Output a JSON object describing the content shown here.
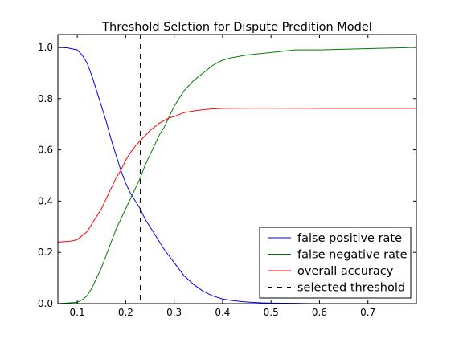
{
  "chart_data": {
    "type": "line",
    "title": "Threshold Selction for Dispute Predition Model",
    "xlabel": "",
    "ylabel": "",
    "xlim": [
      0.06,
      0.8
    ],
    "ylim": [
      0.0,
      1.05
    ],
    "xticks": [
      0.1,
      0.2,
      0.3,
      0.4,
      0.5,
      0.6,
      0.7
    ],
    "yticks": [
      0.0,
      0.2,
      0.4,
      0.6,
      0.8,
      1.0
    ],
    "xtick_labels": [
      "0.1",
      "0.2",
      "0.3",
      "0.4",
      "0.5",
      "0.6",
      "0.7"
    ],
    "ytick_labels": [
      "0.0",
      "0.2",
      "0.4",
      "0.6",
      "0.8",
      "1.0"
    ],
    "grid": false,
    "legend_position": "lower-right",
    "series": [
      {
        "name": "false positive rate",
        "color": "#0000ff",
        "x": [
          0.06,
          0.08,
          0.1,
          0.11,
          0.12,
          0.13,
          0.14,
          0.15,
          0.16,
          0.17,
          0.18,
          0.19,
          0.2,
          0.21,
          0.22,
          0.23,
          0.24,
          0.25,
          0.26,
          0.28,
          0.3,
          0.32,
          0.34,
          0.36,
          0.38,
          0.4,
          0.42,
          0.44,
          0.46,
          0.48,
          0.5,
          0.55,
          0.6,
          0.7,
          0.8
        ],
        "y": [
          1.0,
          0.998,
          0.99,
          0.97,
          0.94,
          0.89,
          0.83,
          0.77,
          0.71,
          0.64,
          0.58,
          0.52,
          0.47,
          0.43,
          0.4,
          0.37,
          0.33,
          0.3,
          0.27,
          0.21,
          0.16,
          0.11,
          0.075,
          0.048,
          0.03,
          0.018,
          0.012,
          0.008,
          0.005,
          0.003,
          0.002,
          0.001,
          0.0,
          0.0,
          0.0
        ]
      },
      {
        "name": "false negative rate",
        "color": "#008000",
        "x": [
          0.06,
          0.1,
          0.11,
          0.12,
          0.13,
          0.14,
          0.15,
          0.16,
          0.17,
          0.18,
          0.19,
          0.2,
          0.21,
          0.22,
          0.23,
          0.24,
          0.25,
          0.26,
          0.27,
          0.28,
          0.29,
          0.3,
          0.32,
          0.34,
          0.36,
          0.38,
          0.4,
          0.42,
          0.45,
          0.5,
          0.55,
          0.6,
          0.7,
          0.8
        ],
        "y": [
          0.0,
          0.005,
          0.015,
          0.03,
          0.06,
          0.1,
          0.14,
          0.19,
          0.24,
          0.29,
          0.33,
          0.37,
          0.41,
          0.45,
          0.49,
          0.54,
          0.58,
          0.62,
          0.66,
          0.69,
          0.73,
          0.77,
          0.83,
          0.87,
          0.9,
          0.93,
          0.95,
          0.96,
          0.97,
          0.98,
          0.99,
          0.99,
          0.995,
          1.0
        ]
      },
      {
        "name": "overall accuracy",
        "color": "#ff0000",
        "x": [
          0.06,
          0.08,
          0.09,
          0.1,
          0.11,
          0.12,
          0.13,
          0.14,
          0.15,
          0.16,
          0.17,
          0.18,
          0.19,
          0.2,
          0.21,
          0.22,
          0.23,
          0.24,
          0.25,
          0.26,
          0.27,
          0.28,
          0.29,
          0.3,
          0.32,
          0.34,
          0.36,
          0.38,
          0.4,
          0.45,
          0.5,
          0.6,
          0.7,
          0.8
        ],
        "y": [
          0.24,
          0.243,
          0.245,
          0.25,
          0.265,
          0.28,
          0.31,
          0.34,
          0.37,
          0.41,
          0.45,
          0.49,
          0.52,
          0.56,
          0.59,
          0.615,
          0.635,
          0.655,
          0.675,
          0.69,
          0.705,
          0.715,
          0.725,
          0.73,
          0.745,
          0.752,
          0.757,
          0.76,
          0.762,
          0.763,
          0.763,
          0.762,
          0.762,
          0.762
        ]
      }
    ],
    "vertical_line": {
      "name": "selected threshold",
      "x": 0.23,
      "color": "#000000",
      "style": "dashed"
    }
  }
}
